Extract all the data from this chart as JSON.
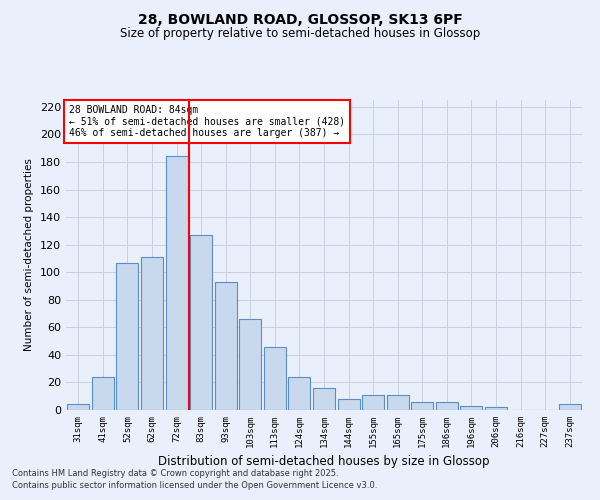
{
  "title1": "28, BOWLAND ROAD, GLOSSOP, SK13 6PF",
  "title2": "Size of property relative to semi-detached houses in Glossop",
  "xlabel": "Distribution of semi-detached houses by size in Glossop",
  "ylabel": "Number of semi-detached properties",
  "categories": [
    "31sqm",
    "41sqm",
    "52sqm",
    "62sqm",
    "72sqm",
    "83sqm",
    "93sqm",
    "103sqm",
    "113sqm",
    "124sqm",
    "134sqm",
    "144sqm",
    "155sqm",
    "165sqm",
    "175sqm",
    "186sqm",
    "196sqm",
    "206sqm",
    "216sqm",
    "227sqm",
    "237sqm"
  ],
  "values": [
    4,
    24,
    107,
    111,
    184,
    127,
    93,
    66,
    46,
    24,
    16,
    8,
    11,
    11,
    6,
    6,
    3,
    2,
    0,
    0,
    4
  ],
  "bar_color": "#c9d9ed",
  "bar_edge_color": "#5b8dc8",
  "grid_color": "#c8d0e0",
  "background_color": "#eaf0fb",
  "vline_color": "red",
  "vline_pos": 4.5,
  "annotation_title": "28 BOWLAND ROAD: 84sqm",
  "annotation_line1": "← 51% of semi-detached houses are smaller (428)",
  "annotation_line2": "46% of semi-detached houses are larger (387) →",
  "annotation_box_color": "white",
  "annotation_box_edge": "red",
  "ylim": [
    0,
    225
  ],
  "yticks": [
    0,
    20,
    40,
    60,
    80,
    100,
    120,
    140,
    160,
    180,
    200,
    220
  ],
  "footer1": "Contains HM Land Registry data © Crown copyright and database right 2025.",
  "footer2": "Contains public sector information licensed under the Open Government Licence v3.0."
}
